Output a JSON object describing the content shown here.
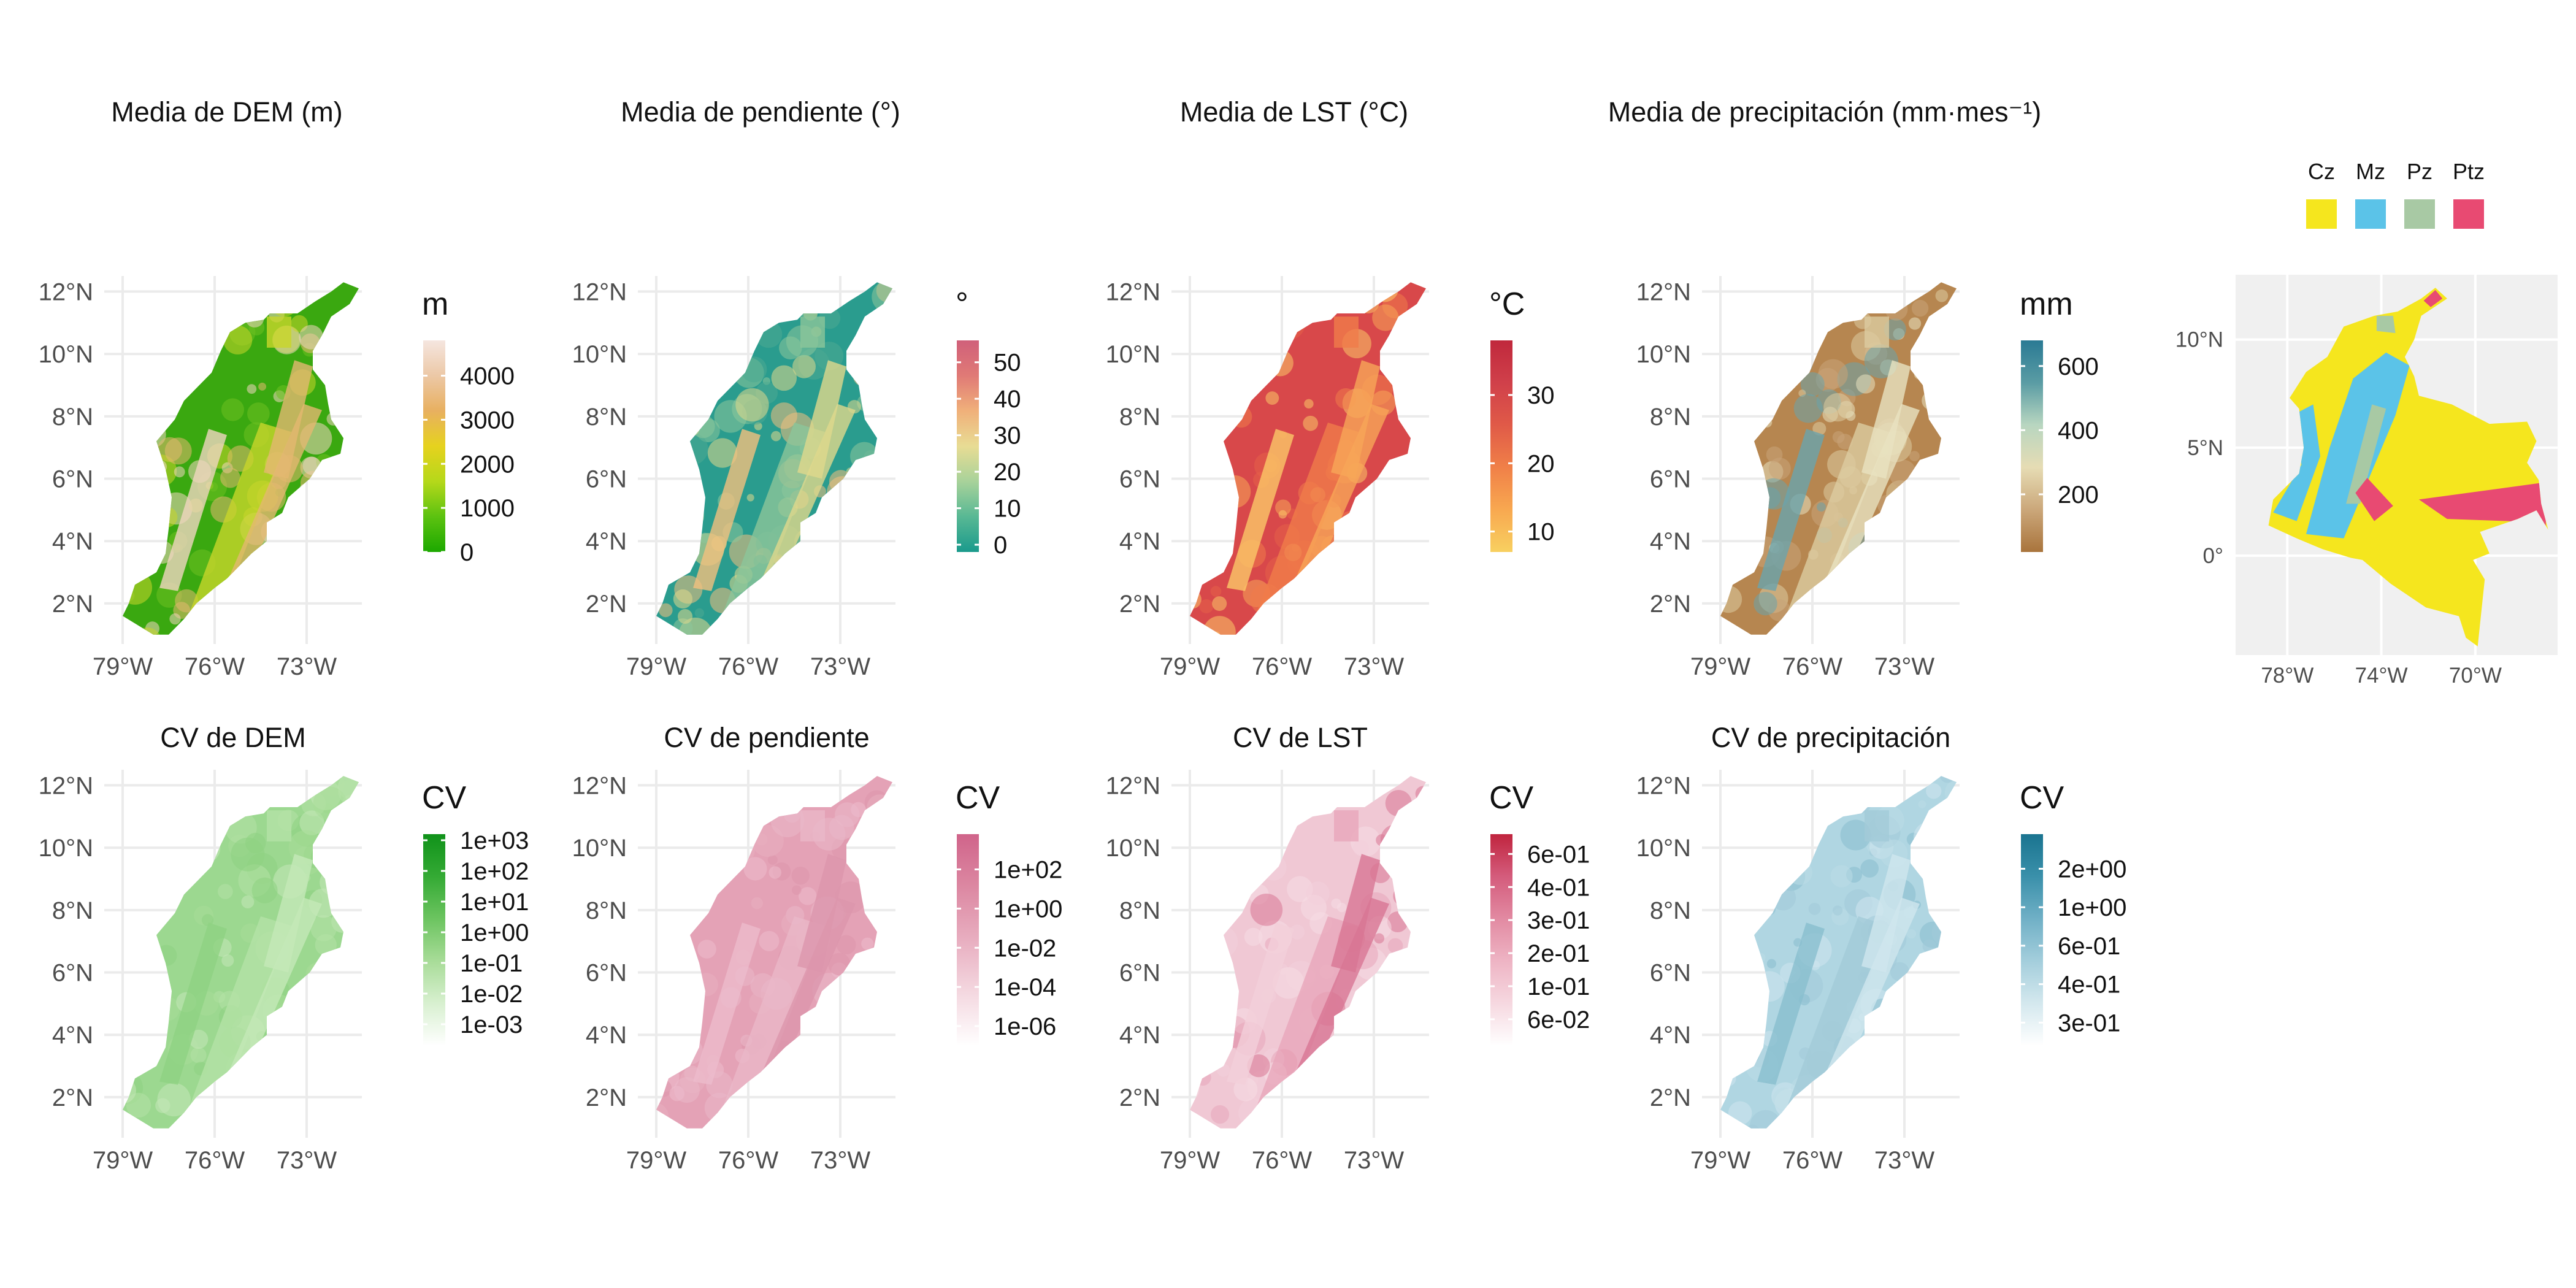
{
  "panels": [
    {
      "id": "dem-mean",
      "title": "Media de DEM (m)",
      "row": 0,
      "col": 0,
      "legend": {
        "title": "m",
        "ticks": [
          "0",
          "1000",
          "2000",
          "3000",
          "4000"
        ],
        "tick_values": [
          0,
          1000,
          2000,
          3000,
          4000
        ],
        "range": [
          0,
          4800
        ],
        "colors": [
          "#1ca800",
          "#5cc210",
          "#b5d81a",
          "#e6d21e",
          "#e8b060",
          "#ecc8a6",
          "#f5e6e0"
        ]
      },
      "map_colors": [
        "#3aa810",
        "#6ec020",
        "#c8d62a",
        "#e4b870",
        "#f0d6c0"
      ]
    },
    {
      "id": "slope-mean",
      "title": "Media de pendiente (°)",
      "row": 0,
      "col": 1,
      "legend": {
        "title": "°",
        "ticks": [
          "0",
          "10",
          "20",
          "30",
          "40",
          "50"
        ],
        "tick_values": [
          0,
          10,
          20,
          30,
          40,
          50
        ],
        "range": [
          -2,
          56
        ],
        "colors": [
          "#1a9a8c",
          "#58b894",
          "#a8d29a",
          "#e8dc94",
          "#f0b07a",
          "#e07a76",
          "#d0607a"
        ]
      },
      "map_colors": [
        "#2a9c8e",
        "#4caa92",
        "#8cc69a",
        "#e0d88c",
        "#f2c07e"
      ]
    },
    {
      "id": "lst-mean",
      "title": "Media de LST (°C)",
      "row": 0,
      "col": 2,
      "legend": {
        "title": "°C",
        "ticks": [
          "10",
          "20",
          "30"
        ],
        "tick_values": [
          10,
          20,
          30
        ],
        "range": [
          7,
          38
        ],
        "colors": [
          "#f8d060",
          "#f8a850",
          "#f08048",
          "#e05a48",
          "#d0404a",
          "#c0283c"
        ]
      },
      "map_colors": [
        "#d8484a",
        "#e66048",
        "#f07c4a",
        "#f8a658",
        "#fbc868"
      ]
    },
    {
      "id": "precip-mean",
      "title": "Media de precipitación (mm·mes⁻¹)",
      "row": 0,
      "col": 3,
      "legend": {
        "title": "mm",
        "ticks": [
          "200",
          "400",
          "600"
        ],
        "tick_values": [
          200,
          400,
          600
        ],
        "range": [
          20,
          680
        ],
        "colors": [
          "#a9743c",
          "#cba77a",
          "#e6dcb4",
          "#b8d6c0",
          "#5a9ca4",
          "#2a7a94"
        ]
      },
      "map_colors": [
        "#b68650",
        "#c8a478",
        "#dccca0",
        "#e8e2c0",
        "#6aa4ac"
      ]
    },
    {
      "id": "dem-cv",
      "title": "CV de DEM",
      "row": 1,
      "col": 0,
      "legend": {
        "title": "CV",
        "ticks": [
          "1e-03",
          "1e-02",
          "1e-01",
          "1e+00",
          "1e+01",
          "1e+02",
          "1e+03"
        ],
        "tick_values": [
          -3,
          -2,
          -1,
          0,
          1,
          2,
          3
        ],
        "range": [
          -3.7,
          3.2
        ],
        "colors": [
          "#ffffff",
          "#d8f0d0",
          "#a8dc98",
          "#6cc460",
          "#34aa34",
          "#10921a"
        ]
      },
      "map_colors": [
        "#9cd890",
        "#a8dc98",
        "#b4e2a6",
        "#c4e8b8",
        "#8ed282"
      ]
    },
    {
      "id": "slope-cv",
      "title": "CV de pendiente",
      "row": 1,
      "col": 1,
      "legend": {
        "title": "CV",
        "ticks": [
          "1e-06",
          "1e-04",
          "1e-02",
          "1e+00",
          "1e+02"
        ],
        "tick_values": [
          -6,
          -4,
          -2,
          0,
          2
        ],
        "range": [
          -7,
          3.8
        ],
        "colors": [
          "#ffffff",
          "#f4d8e0",
          "#e8aec0",
          "#dc88a2",
          "#d0648a"
        ]
      },
      "map_colors": [
        "#e4a2b6",
        "#e8aec0",
        "#eab8c8",
        "#dc96ac",
        "#ecbccc"
      ]
    },
    {
      "id": "lst-cv",
      "title": "CV de LST",
      "row": 1,
      "col": 2,
      "legend": {
        "title": "CV",
        "ticks": [
          "6e-02",
          "1e-01",
          "2e-01",
          "3e-01",
          "4e-01",
          "6e-01"
        ],
        "tick_values": [
          0,
          1,
          2,
          3,
          4,
          5
        ],
        "range": [
          -0.8,
          5.6
        ],
        "colors": [
          "#ffffff",
          "#f6d8e0",
          "#eeb4c4",
          "#e28aa2",
          "#d45c7c",
          "#c0243e"
        ]
      },
      "map_colors": [
        "#f0c8d4",
        "#f6dce4",
        "#e8a6ba",
        "#d87694",
        "#f2d0da"
      ]
    },
    {
      "id": "precip-cv",
      "title": "CV de precipitación",
      "row": 1,
      "col": 3,
      "legend": {
        "title": "CV",
        "ticks": [
          "3e-01",
          "4e-01",
          "6e-01",
          "1e+00",
          "2e+00"
        ],
        "tick_values": [
          0,
          1,
          2,
          3,
          4
        ],
        "range": [
          -0.6,
          4.9
        ],
        "colors": [
          "#ffffff",
          "#d4e8ee",
          "#a4cedc",
          "#70b0c6",
          "#3a90aa",
          "#1a7490"
        ]
      },
      "map_colors": [
        "#b0d6e2",
        "#bcdce6",
        "#a2cad8",
        "#d0e6ee",
        "#88bece"
      ]
    }
  ],
  "axes": {
    "x_ticks": [
      "79°W",
      "76°W",
      "73°W"
    ],
    "x_values": [
      -79,
      -76,
      -73
    ],
    "y_ticks": [
      "2°N",
      "4°N",
      "6°N",
      "8°N",
      "10°N",
      "12°N"
    ],
    "y_values": [
      2,
      4,
      6,
      8,
      10,
      12
    ]
  },
  "inset": {
    "x_ticks": [
      "78°W",
      "74°W",
      "70°W"
    ],
    "x_values": [
      -78,
      -74,
      -70
    ],
    "y_ticks": [
      "0°",
      "5°N",
      "10°N"
    ],
    "y_values": [
      0,
      5,
      10
    ],
    "background": "#f0f0f0",
    "legend": [
      {
        "label": "Cz",
        "color": "#f5e61e"
      },
      {
        "label": "Mz",
        "color": "#5bc3e8"
      },
      {
        "label": "Pz",
        "color": "#a8c9a4"
      },
      {
        "label": "Ptz",
        "color": "#e84a72"
      }
    ]
  }
}
